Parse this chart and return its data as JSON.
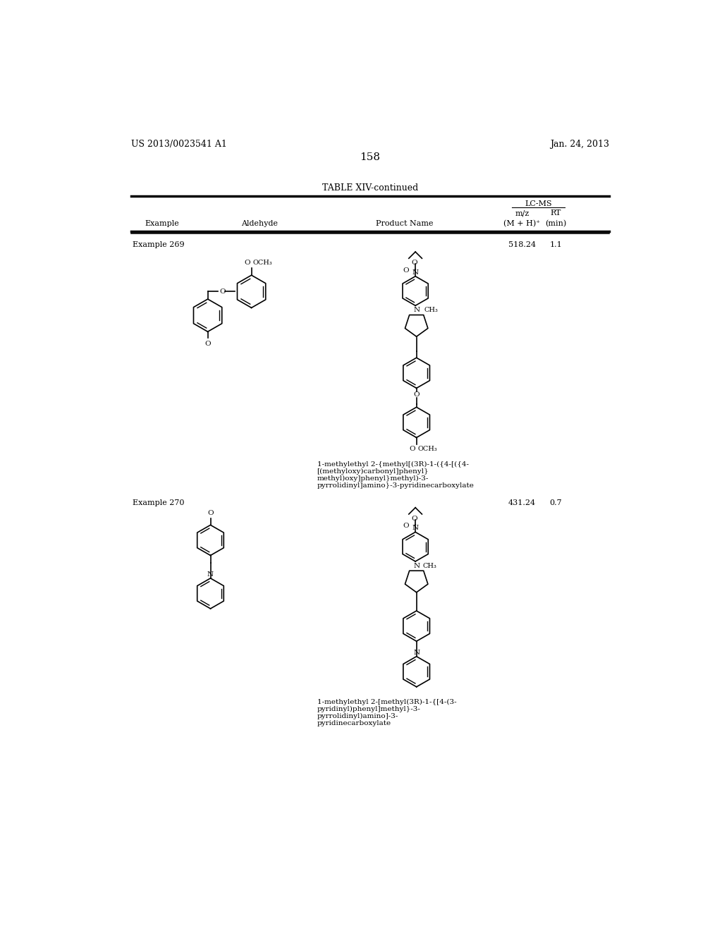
{
  "page_number": "158",
  "patent_number": "US 2013/0023541 A1",
  "patent_date": "Jan. 24, 2013",
  "table_title": "TABLE XIV-continued",
  "lcms_header": "LC-MS",
  "examples": [
    {
      "name": "Example 269",
      "mz": "518.24",
      "rt": "1.1",
      "product_name_lines": [
        "1-methylethyl 2-{methyl[(3R)-1-({4-[({4-",
        "[(methyloxy)carbonyl]phenyl}",
        "methyl)oxy]phenyl}methyl)-3-",
        "pyrrolidinyl]amino}-3-pyridinecarboxylate"
      ]
    },
    {
      "name": "Example 270",
      "mz": "431.24",
      "rt": "0.7",
      "product_name_lines": [
        "1-methylethyl 2-[methyl(3R)-1-{[4-(3-",
        "pyridinyl)phenyl]methyl}-3-",
        "pyrrolidinyl)amino]-3-",
        "pyridinecarboxylate"
      ]
    }
  ],
  "background_color": "#ffffff"
}
